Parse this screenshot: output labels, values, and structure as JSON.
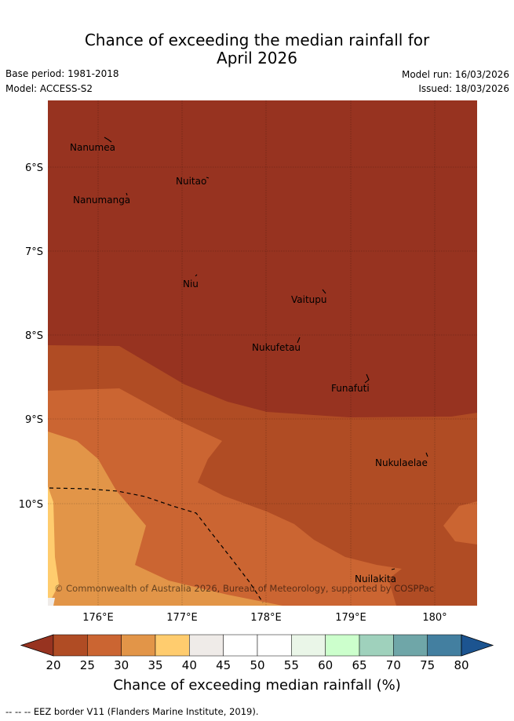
{
  "title": {
    "line1": "Chance of exceeding the median rainfall for",
    "line2": "April 2026"
  },
  "meta": {
    "base_period": "Base period: 1981-2018",
    "model": "Model: ACCESS-S2",
    "model_run": "Model run: 16/03/2026",
    "issued": "Issued: 18/03/2026"
  },
  "map": {
    "lat_labels": [
      "6°S",
      "7°S",
      "8°S",
      "9°S",
      "10°S"
    ],
    "lon_labels": [
      "176°E",
      "177°E",
      "178°E",
      "179°E",
      "180°"
    ],
    "places": [
      {
        "name": "Nanumea"
      },
      {
        "name": "Nuitao"
      },
      {
        "name": "Nanumanga"
      },
      {
        "name": "Niu"
      },
      {
        "name": "Vaitupu"
      },
      {
        "name": "Nukufetau"
      },
      {
        "name": "Funafuti"
      },
      {
        "name": "Nukulaelae"
      },
      {
        "name": "Nuilakita"
      }
    ],
    "copyright": "© Commonwealth of Australia 2026, Bureau of Meteorology, supported by COSPPac",
    "colors": {
      "c20": "#973320",
      "c25": "#b04c24",
      "c30": "#cb6532",
      "c35": "#e29548",
      "c40": "#ffcc6e"
    }
  },
  "colorbar": {
    "ticks": [
      "20",
      "25",
      "30",
      "35",
      "40",
      "45",
      "50",
      "55",
      "60",
      "65",
      "70",
      "75",
      "80"
    ],
    "colors": [
      "#b04c24",
      "#cb6532",
      "#e29548",
      "#ffcc6e",
      "#efebe8",
      "#ffffff",
      "#ffffff",
      "#eaf6e8",
      "#ccffcc",
      "#9fd1bc",
      "#6fa6a8",
      "#437fa0"
    ],
    "under_color": "#973320",
    "over_color": "#1c5490",
    "label": "Chance of exceeding median rainfall (%)"
  },
  "footnote": "-- -- -- EEZ border V11 (Flanders Marine Institute, 2019)."
}
